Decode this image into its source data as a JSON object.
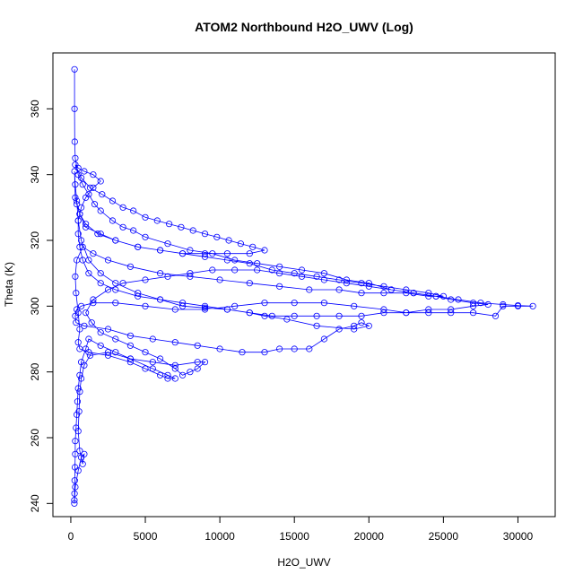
{
  "chart_data": {
    "type": "scatter",
    "title": "ATOM2 Northbound H2O_UWV (Log)",
    "xlabel": "H2O_UWV",
    "ylabel": "Theta (K)",
    "xlim": [
      -1200,
      32500
    ],
    "ylim": [
      236,
      377
    ],
    "xticks": [
      0,
      5000,
      10000,
      15000,
      20000,
      25000,
      30000
    ],
    "yticks": [
      240,
      260,
      280,
      300,
      320,
      340,
      360
    ],
    "grid": false,
    "marker": "open-circle",
    "connected": true,
    "colors": {
      "series": "#0000ff",
      "axis": "#000000"
    },
    "series": [
      {
        "values": [
          [
            250,
            372
          ],
          [
            250,
            360
          ],
          [
            260,
            350
          ],
          [
            300,
            345
          ],
          [
            500,
            340
          ],
          [
            800,
            337
          ],
          [
            1200,
            334
          ],
          [
            1600,
            331
          ],
          [
            2000,
            329
          ],
          [
            2800,
            326
          ],
          [
            3500,
            324
          ],
          [
            4200,
            323
          ],
          [
            5000,
            321
          ],
          [
            6500,
            319
          ],
          [
            8000,
            317
          ],
          [
            9500,
            316
          ],
          [
            11000,
            314
          ],
          [
            12500,
            313
          ],
          [
            14000,
            312
          ],
          [
            15500,
            311
          ],
          [
            17000,
            310
          ],
          [
            18500,
            308
          ],
          [
            20000,
            307
          ],
          [
            21500,
            305
          ],
          [
            23000,
            304
          ],
          [
            24500,
            303
          ],
          [
            26000,
            302
          ],
          [
            27500,
            301
          ],
          [
            29000,
            300.5
          ],
          [
            30000,
            300.2
          ],
          [
            31000,
            300
          ],
          [
            30000,
            300
          ],
          [
            29000,
            300
          ],
          [
            28500,
            297
          ],
          [
            27000,
            298
          ],
          [
            25500,
            298
          ],
          [
            24000,
            298
          ],
          [
            22500,
            298
          ],
          [
            21000,
            299
          ],
          [
            19000,
            300
          ],
          [
            17000,
            301
          ],
          [
            15000,
            301
          ],
          [
            13000,
            301
          ],
          [
            11000,
            300
          ],
          [
            9000,
            299
          ],
          [
            7000,
            299
          ],
          [
            5000,
            300
          ],
          [
            3000,
            301
          ],
          [
            1500,
            301
          ],
          [
            700,
            300
          ],
          [
            400,
            299
          ],
          [
            300,
            297
          ],
          [
            350,
            295
          ],
          [
            900,
            294
          ],
          [
            2500,
            293
          ],
          [
            4000,
            291
          ],
          [
            5500,
            290
          ],
          [
            7000,
            289
          ],
          [
            8500,
            288
          ],
          [
            10000,
            287
          ],
          [
            11500,
            286
          ],
          [
            13000,
            286
          ],
          [
            14000,
            287
          ],
          [
            15000,
            287
          ],
          [
            16000,
            287
          ],
          [
            17000,
            290
          ],
          [
            18000,
            293
          ],
          [
            19000,
            294
          ],
          [
            19500,
            295
          ],
          [
            20000,
            294
          ],
          [
            19000,
            293
          ],
          [
            16500,
            294
          ],
          [
            14500,
            296
          ],
          [
            13000,
            297
          ],
          [
            12000,
            298
          ],
          [
            10500,
            299
          ],
          [
            9000,
            299.5
          ],
          [
            7500,
            300
          ],
          [
            6000,
            302
          ],
          [
            4500,
            304
          ],
          [
            3000,
            307
          ],
          [
            2000,
            310
          ],
          [
            1200,
            314
          ],
          [
            700,
            320
          ],
          [
            500,
            326
          ],
          [
            400,
            332
          ],
          [
            300,
            337
          ],
          [
            250,
            341
          ],
          [
            300,
            333
          ],
          [
            600,
            328
          ],
          [
            1000,
            324
          ],
          [
            2000,
            322
          ],
          [
            3000,
            320
          ],
          [
            4500,
            318
          ],
          [
            6000,
            317
          ],
          [
            7500,
            316
          ],
          [
            9000,
            315
          ],
          [
            10500,
            314
          ],
          [
            12000,
            313
          ],
          [
            13500,
            311
          ],
          [
            15000,
            310
          ],
          [
            16500,
            309
          ],
          [
            18000,
            308
          ],
          [
            19500,
            307
          ],
          [
            21000,
            306
          ],
          [
            22500,
            305
          ],
          [
            24000,
            304
          ],
          [
            25000,
            303
          ],
          [
            24000,
            303
          ],
          [
            22500,
            304
          ],
          [
            21000,
            304
          ],
          [
            19500,
            304
          ],
          [
            18000,
            305
          ],
          [
            16000,
            305
          ],
          [
            14000,
            306
          ],
          [
            12000,
            307
          ],
          [
            10000,
            308
          ],
          [
            8000,
            309
          ],
          [
            6000,
            310
          ],
          [
            4000,
            312
          ],
          [
            2500,
            314
          ],
          [
            1500,
            316
          ],
          [
            800,
            318
          ],
          [
            400,
            314
          ],
          [
            300,
            309
          ],
          [
            350,
            304
          ],
          [
            500,
            298
          ],
          [
            600,
            293
          ],
          [
            500,
            289
          ],
          [
            600,
            287
          ],
          [
            1200,
            286
          ],
          [
            2500,
            285
          ],
          [
            4000,
            283
          ],
          [
            5000,
            281
          ],
          [
            6000,
            279
          ],
          [
            6500,
            278
          ],
          [
            7000,
            278
          ],
          [
            6500,
            279
          ],
          [
            5500,
            281
          ],
          [
            4000,
            284
          ],
          [
            3000,
            286
          ],
          [
            2000,
            288
          ],
          [
            1200,
            290
          ],
          [
            1000,
            287
          ],
          [
            700,
            283
          ],
          [
            600,
            279
          ],
          [
            500,
            275
          ],
          [
            450,
            271
          ],
          [
            400,
            267
          ],
          [
            350,
            263
          ],
          [
            300,
            259
          ],
          [
            300,
            255
          ],
          [
            280,
            251
          ],
          [
            260,
            247
          ],
          [
            250,
            243
          ],
          [
            240,
            241
          ],
          [
            240,
            240
          ],
          [
            300,
            245
          ],
          [
            500,
            250
          ],
          [
            700,
            254
          ],
          [
            900,
            255
          ],
          [
            800,
            252
          ],
          [
            600,
            256
          ],
          [
            500,
            262
          ],
          [
            550,
            268
          ],
          [
            600,
            274
          ],
          [
            700,
            278
          ],
          [
            900,
            282
          ],
          [
            1300,
            285
          ],
          [
            2500,
            286
          ],
          [
            4000,
            284
          ],
          [
            5500,
            283
          ],
          [
            7000,
            282
          ],
          [
            8500,
            283
          ],
          [
            9000,
            283
          ],
          [
            8500,
            281
          ],
          [
            8000,
            280
          ],
          [
            7500,
            279
          ],
          [
            7000,
            281
          ],
          [
            6000,
            284
          ],
          [
            5000,
            286
          ],
          [
            4000,
            288
          ],
          [
            3000,
            290
          ],
          [
            2000,
            292
          ],
          [
            1400,
            295
          ],
          [
            1000,
            298
          ],
          [
            1500,
            302
          ],
          [
            2500,
            305
          ],
          [
            3500,
            307
          ],
          [
            5000,
            308
          ],
          [
            6500,
            309
          ],
          [
            8000,
            310
          ],
          [
            9500,
            311
          ],
          [
            11000,
            311
          ],
          [
            12500,
            311
          ],
          [
            14000,
            310
          ],
          [
            15500,
            309
          ],
          [
            17000,
            308
          ],
          [
            18500,
            307
          ],
          [
            20000,
            306
          ],
          [
            21500,
            305
          ],
          [
            23000,
            304
          ],
          [
            24500,
            303
          ],
          [
            25500,
            302
          ],
          [
            27000,
            301
          ],
          [
            28000,
            300.5
          ],
          [
            27000,
            300
          ],
          [
            25500,
            299
          ],
          [
            24000,
            299
          ],
          [
            22500,
            298
          ],
          [
            21000,
            298
          ],
          [
            19500,
            297
          ],
          [
            18000,
            297
          ],
          [
            16500,
            297
          ],
          [
            15000,
            297
          ],
          [
            13500,
            297
          ],
          [
            12000,
            298
          ],
          [
            10500,
            299
          ],
          [
            9000,
            300
          ],
          [
            7500,
            301
          ],
          [
            6000,
            302
          ],
          [
            4500,
            303
          ],
          [
            3000,
            305
          ],
          [
            2000,
            307
          ],
          [
            1200,
            310
          ],
          [
            800,
            314
          ],
          [
            600,
            318
          ],
          [
            500,
            322
          ],
          [
            500,
            326
          ],
          [
            700,
            330
          ],
          [
            1000,
            333
          ],
          [
            1500,
            336
          ],
          [
            2000,
            338
          ],
          [
            1500,
            340
          ],
          [
            900,
            341
          ],
          [
            500,
            342
          ],
          [
            300,
            343
          ],
          [
            700,
            339
          ],
          [
            1300,
            336
          ],
          [
            2100,
            334
          ],
          [
            2800,
            332
          ],
          [
            3500,
            330
          ],
          [
            4200,
            329
          ],
          [
            5000,
            327
          ],
          [
            5800,
            326
          ],
          [
            6600,
            325
          ],
          [
            7400,
            324
          ],
          [
            8200,
            323
          ],
          [
            9000,
            322
          ],
          [
            9800,
            321
          ],
          [
            10600,
            320
          ],
          [
            11400,
            319
          ],
          [
            12200,
            318
          ],
          [
            13000,
            317
          ],
          [
            12000,
            316
          ],
          [
            10500,
            316
          ],
          [
            9000,
            316
          ],
          [
            7500,
            316
          ],
          [
            6000,
            317
          ],
          [
            4500,
            318
          ],
          [
            3000,
            320
          ],
          [
            1800,
            322
          ],
          [
            1000,
            325
          ],
          [
            600,
            328
          ],
          [
            400,
            331
          ]
        ]
      }
    ]
  }
}
